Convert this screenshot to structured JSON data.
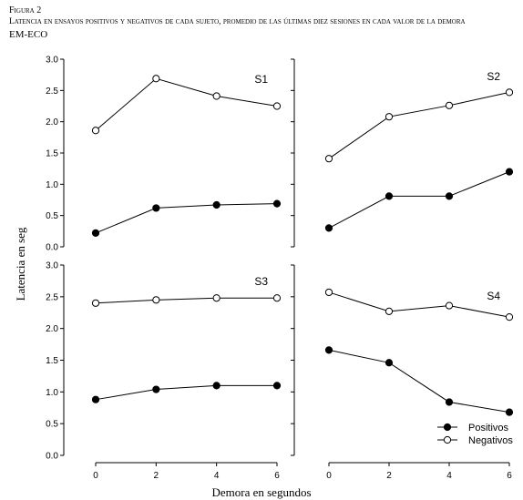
{
  "figure": {
    "label": "Figura 2",
    "caption": "Latencia en ensayos positivos y negativos de cada sujeto, promedio de las últimas diez sesiones en cada valor de la demora",
    "subcaption": "EM-ECO"
  },
  "chart_data": {
    "type": "line",
    "ylabel": "Latencia en seg",
    "xlabel": "Demora en segundos",
    "x": [
      0,
      2,
      4,
      6
    ],
    "x_ticks": [
      "0",
      "2",
      "4",
      "6"
    ],
    "ylim": [
      0,
      3
    ],
    "y_ticks": [
      "0.0",
      "0.5",
      "1.0",
      "1.5",
      "2.0",
      "2.5",
      "3.0"
    ],
    "grid": false,
    "legend": {
      "placement": "bottom-right of panel S4",
      "entries": [
        "Positivos",
        "Negativos"
      ]
    },
    "panels": [
      {
        "name": "S1",
        "series": [
          {
            "name": "Positivos",
            "marker": "filled",
            "values": [
              0.22,
              0.62,
              0.67,
              0.69
            ]
          },
          {
            "name": "Negativos",
            "marker": "open",
            "values": [
              1.86,
              2.69,
              2.41,
              2.25
            ]
          }
        ]
      },
      {
        "name": "S2",
        "series": [
          {
            "name": "Positivos",
            "marker": "filled",
            "values": [
              0.3,
              0.81,
              0.81,
              1.2
            ]
          },
          {
            "name": "Negativos",
            "marker": "open",
            "values": [
              1.41,
              2.08,
              2.26,
              2.47
            ]
          }
        ]
      },
      {
        "name": "S3",
        "series": [
          {
            "name": "Positivos",
            "marker": "filled",
            "values": [
              0.88,
              1.04,
              1.1,
              1.1
            ]
          },
          {
            "name": "Negativos",
            "marker": "open",
            "values": [
              2.4,
              2.45,
              2.48,
              2.48
            ]
          }
        ]
      },
      {
        "name": "S4",
        "series": [
          {
            "name": "Positivos",
            "marker": "filled",
            "values": [
              1.66,
              1.46,
              0.84,
              0.68
            ]
          },
          {
            "name": "Negativos",
            "marker": "open",
            "values": [
              2.57,
              2.27,
              2.36,
              2.18
            ]
          }
        ]
      }
    ]
  }
}
